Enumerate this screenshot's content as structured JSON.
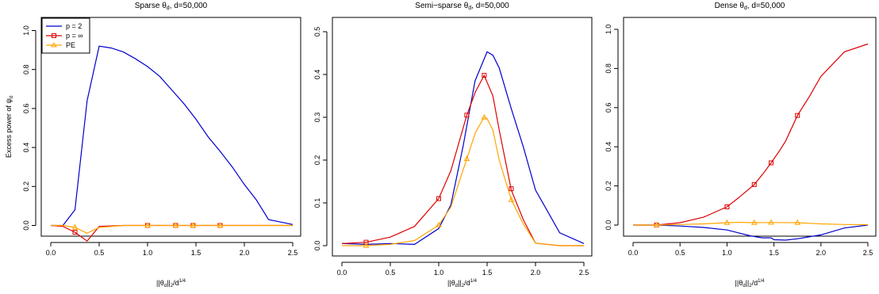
{
  "chart_data": [
    {
      "type": "line",
      "title": "Sparse θd, d=50,000",
      "title_text": "Sparse θ",
      "title_sub": "d",
      "title_tail": ", d=50,000",
      "xlabel": "||θd||2/d^(1/4)",
      "ylabel": "Excess power of ψd",
      "ylabel_text": "Excess power of ψ",
      "ylabel_sub": "d",
      "xlim": [
        0,
        2.5
      ],
      "ylim": [
        0,
        1.0
      ],
      "xticks": [
        "0.0",
        "0.5",
        "1.0",
        "1.5",
        "2.0",
        "2.5"
      ],
      "yticks": [
        "0.0",
        "0.2",
        "0.4",
        "0.6",
        "0.8",
        "1.0"
      ],
      "legend": {
        "position": "top-left",
        "entries": [
          {
            "label": "p = 2",
            "color": "#0000cc",
            "marker": "none"
          },
          {
            "label": "p = ∞",
            "color": "#dd0000",
            "marker": "square"
          },
          {
            "label": "PE",
            "color": "#ffa500",
            "marker": "triangle"
          }
        ]
      },
      "series": [
        {
          "color": "#0000cc",
          "marker": "none",
          "points": [
            [
              0,
              0
            ],
            [
              0.125,
              0
            ],
            [
              0.25,
              0.08
            ],
            [
              0.375,
              0.64
            ],
            [
              0.5,
              0.92
            ],
            [
              0.625,
              0.91
            ],
            [
              0.75,
              0.89
            ],
            [
              0.875,
              0.855
            ],
            [
              1.0,
              0.815
            ],
            [
              1.125,
              0.765
            ],
            [
              1.25,
              0.695
            ],
            [
              1.375,
              0.625
            ],
            [
              1.5,
              0.545
            ],
            [
              1.625,
              0.455
            ],
            [
              1.75,
              0.38
            ],
            [
              1.875,
              0.3
            ],
            [
              2.0,
              0.21
            ],
            [
              2.125,
              0.13
            ],
            [
              2.25,
              0.03
            ],
            [
              2.5,
              0.005
            ]
          ]
        },
        {
          "color": "#dd0000",
          "marker": "square",
          "points": [
            [
              0,
              0
            ],
            [
              0.125,
              -0.005
            ],
            [
              0.25,
              -0.035
            ],
            [
              0.375,
              -0.08
            ],
            [
              0.5,
              -0.005
            ],
            [
              0.75,
              0
            ],
            [
              1.0,
              0
            ],
            [
              1.25,
              0
            ],
            [
              1.5,
              0
            ],
            [
              1.75,
              0
            ],
            [
              2.0,
              0
            ],
            [
              2.25,
              0
            ],
            [
              2.5,
              0
            ]
          ],
          "markers": [
            [
              0.25,
              -0.035
            ],
            [
              1.0,
              0
            ],
            [
              1.29,
              0
            ],
            [
              1.47,
              0
            ],
            [
              1.75,
              0
            ]
          ]
        },
        {
          "color": "#ffa500",
          "marker": "triangle",
          "points": [
            [
              0,
              0
            ],
            [
              0.125,
              0
            ],
            [
              0.25,
              -0.01
            ],
            [
              0.375,
              -0.04
            ],
            [
              0.5,
              -0.01
            ],
            [
              0.75,
              0
            ],
            [
              1.0,
              0
            ],
            [
              1.25,
              0
            ],
            [
              1.5,
              0
            ],
            [
              1.75,
              0
            ],
            [
              2.0,
              0
            ],
            [
              2.25,
              0
            ],
            [
              2.5,
              0
            ]
          ],
          "markers": [
            [
              0.25,
              -0.01
            ],
            [
              1.0,
              0
            ],
            [
              1.29,
              0
            ],
            [
              1.47,
              0
            ],
            [
              1.75,
              0
            ]
          ]
        }
      ]
    },
    {
      "type": "line",
      "title": "Semi-sparse θd, d=50,000",
      "title_text": "Semi−sparse θ",
      "title_sub": "d",
      "title_tail": ", d=50,000",
      "xlabel": "||θd||2/d^(1/4)",
      "xlim": [
        0,
        2.5
      ],
      "ylim": [
        0,
        0.5
      ],
      "xticks": [
        "0.0",
        "0.5",
        "1.0",
        "1.5",
        "2.0",
        "2.5"
      ],
      "yticks": [
        "0.0",
        "0.1",
        "0.2",
        "0.3",
        "0.4",
        "0.5"
      ],
      "series": [
        {
          "color": "#0000cc",
          "marker": "none",
          "points": [
            [
              0,
              0.005
            ],
            [
              0.25,
              0.003
            ],
            [
              0.5,
              0.005
            ],
            [
              0.75,
              0.003
            ],
            [
              1.0,
              0.04
            ],
            [
              1.125,
              0.095
            ],
            [
              1.25,
              0.23
            ],
            [
              1.375,
              0.385
            ],
            [
              1.5,
              0.453
            ],
            [
              1.56,
              0.445
            ],
            [
              1.625,
              0.415
            ],
            [
              1.75,
              0.32
            ],
            [
              1.875,
              0.23
            ],
            [
              2.0,
              0.13
            ],
            [
              2.125,
              0.08
            ],
            [
              2.25,
              0.03
            ],
            [
              2.5,
              0.005
            ]
          ]
        },
        {
          "color": "#dd0000",
          "marker": "square",
          "points": [
            [
              0,
              0.005
            ],
            [
              0.25,
              0.008
            ],
            [
              0.5,
              0.02
            ],
            [
              0.75,
              0.045
            ],
            [
              1.0,
              0.11
            ],
            [
              1.125,
              0.175
            ],
            [
              1.29,
              0.305
            ],
            [
              1.38,
              0.36
            ],
            [
              1.47,
              0.398
            ],
            [
              1.56,
              0.35
            ],
            [
              1.625,
              0.27
            ],
            [
              1.75,
              0.13
            ],
            [
              1.875,
              0.06
            ],
            [
              2.0,
              0.006
            ],
            [
              2.25,
              0
            ],
            [
              2.5,
              0
            ]
          ],
          "markers": [
            [
              0.25,
              0.008
            ],
            [
              1.0,
              0.11
            ],
            [
              1.29,
              0.305
            ],
            [
              1.47,
              0.398
            ],
            [
              1.75,
              0.133
            ]
          ]
        },
        {
          "color": "#ffa500",
          "marker": "triangle",
          "points": [
            [
              0,
              0
            ],
            [
              0.25,
              0
            ],
            [
              0.5,
              0.003
            ],
            [
              0.75,
              0.012
            ],
            [
              1.0,
              0.048
            ],
            [
              1.125,
              0.09
            ],
            [
              1.29,
              0.203
            ],
            [
              1.38,
              0.265
            ],
            [
              1.47,
              0.3
            ],
            [
              1.5,
              0.297
            ],
            [
              1.56,
              0.27
            ],
            [
              1.625,
              0.2
            ],
            [
              1.75,
              0.107
            ],
            [
              1.875,
              0.05
            ],
            [
              2.0,
              0.006
            ],
            [
              2.25,
              0
            ],
            [
              2.5,
              0
            ]
          ],
          "markers": [
            [
              0.25,
              0
            ],
            [
              1.0,
              0.048
            ],
            [
              1.29,
              0.203
            ],
            [
              1.47,
              0.3
            ],
            [
              1.75,
              0.107
            ]
          ]
        }
      ]
    },
    {
      "type": "line",
      "title": "Dense θd, d=50,000",
      "title_text": "Dense θ",
      "title_sub": "d",
      "title_tail": ", d=50,000",
      "xlabel": "||θd||2/d^(1/4)",
      "xlim": [
        0,
        2.5
      ],
      "ylim": [
        0,
        1.0
      ],
      "xticks": [
        "0.0",
        "0.5",
        "1.0",
        "1.5",
        "2.0",
        "2.5"
      ],
      "yticks": [
        "0.0",
        "0.2",
        "0.4",
        "0.6",
        "0.8",
        "1.0"
      ],
      "series": [
        {
          "color": "#0000cc",
          "marker": "none",
          "points": [
            [
              0,
              0
            ],
            [
              0.25,
              0
            ],
            [
              0.5,
              -0.005
            ],
            [
              0.75,
              -0.012
            ],
            [
              1.0,
              -0.025
            ],
            [
              1.125,
              -0.04
            ],
            [
              1.25,
              -0.055
            ],
            [
              1.375,
              -0.065
            ],
            [
              1.47,
              -0.065
            ],
            [
              1.5,
              -0.075
            ],
            [
              1.625,
              -0.077
            ],
            [
              1.75,
              -0.07
            ],
            [
              2.0,
              -0.05
            ],
            [
              2.25,
              -0.015
            ],
            [
              2.5,
              0
            ]
          ]
        },
        {
          "color": "#dd0000",
          "marker": "square",
          "points": [
            [
              0,
              0
            ],
            [
              0.25,
              0
            ],
            [
              0.5,
              0.012
            ],
            [
              0.75,
              0.04
            ],
            [
              1.0,
              0.093
            ],
            [
              1.125,
              0.14
            ],
            [
              1.29,
              0.207
            ],
            [
              1.38,
              0.26
            ],
            [
              1.47,
              0.318
            ],
            [
              1.56,
              0.38
            ],
            [
              1.625,
              0.43
            ],
            [
              1.75,
              0.56
            ],
            [
              1.875,
              0.655
            ],
            [
              2.0,
              0.76
            ],
            [
              2.25,
              0.885
            ],
            [
              2.5,
              0.925
            ]
          ],
          "markers": [
            [
              0.25,
              0
            ],
            [
              1.0,
              0.093
            ],
            [
              1.29,
              0.207
            ],
            [
              1.47,
              0.318
            ],
            [
              1.75,
              0.56
            ]
          ]
        },
        {
          "color": "#ffa500",
          "marker": "triangle",
          "points": [
            [
              0,
              0
            ],
            [
              0.25,
              0
            ],
            [
              0.5,
              0.003
            ],
            [
              0.75,
              0.006
            ],
            [
              1.0,
              0.012
            ],
            [
              1.125,
              0.014
            ],
            [
              1.29,
              0.012
            ],
            [
              1.47,
              0.013
            ],
            [
              1.75,
              0.012
            ],
            [
              2.0,
              0.006
            ],
            [
              2.25,
              0.003
            ],
            [
              2.5,
              0.002
            ]
          ],
          "markers": [
            [
              0.25,
              0
            ],
            [
              1.0,
              0.012
            ],
            [
              1.29,
              0.012
            ],
            [
              1.47,
              0.013
            ],
            [
              1.75,
              0.012
            ]
          ]
        }
      ]
    }
  ]
}
